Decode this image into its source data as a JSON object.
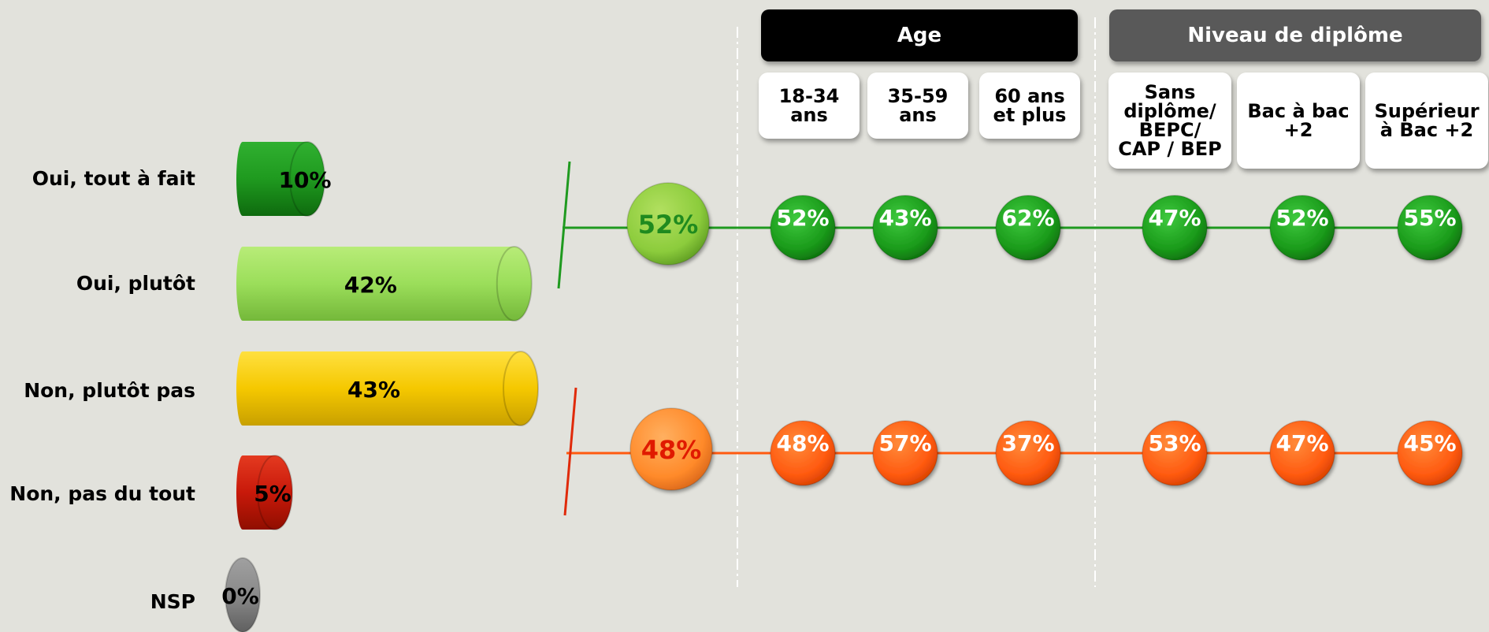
{
  "chart_data": [
    {
      "type": "bar",
      "orientation": "horizontal",
      "categories": [
        "Oui, tout à fait",
        "Oui, plutôt",
        "Non, plutôt pas",
        "Non, pas du tout",
        "NSP"
      ],
      "values": [
        10,
        42,
        43,
        5,
        0
      ],
      "value_labels": [
        "10%",
        "42%",
        "43%",
        "5%",
        "0%"
      ],
      "colors": [
        "#1f9a1f",
        "#9bde5a",
        "#f5c800",
        "#c8190a",
        "#8a8a8a"
      ],
      "grid": false
    },
    {
      "type": "scatter",
      "groups": [
        {
          "title": "Age",
          "categories": [
            "18-34\nans",
            "35-59\nans",
            "60 ans\net plus"
          ]
        },
        {
          "title": "Niveau de diplôme",
          "categories": [
            "Sans\ndiplôme/\nBEPC/\nCAP / BEP",
            "Bac à bac\n+2",
            "Supérieur\nà Bac +2"
          ]
        }
      ],
      "series": [
        {
          "total": 52,
          "total_label": "52%",
          "values": [
            52,
            43,
            62,
            47,
            52,
            55
          ],
          "value_labels": [
            "52%",
            "43%",
            "62%",
            "47%",
            "52%",
            "55%"
          ],
          "color": "#1f9a1f",
          "total_color": "#8ccc3c"
        },
        {
          "total": 48,
          "total_label": "48%",
          "values": [
            48,
            57,
            37,
            53,
            47,
            45
          ],
          "value_labels": [
            "48%",
            "57%",
            "37%",
            "53%",
            "47%",
            "45%"
          ],
          "color": "#ff5a10",
          "total_color": "#ff8a2a"
        }
      ],
      "grid": false
    }
  ],
  "colors": {
    "background": "#e2e2dc",
    "age_header": "#000000",
    "diploma_header": "#595959",
    "total_text_top": "#1f8a1f",
    "total_text_bottom": "#e01a00"
  }
}
